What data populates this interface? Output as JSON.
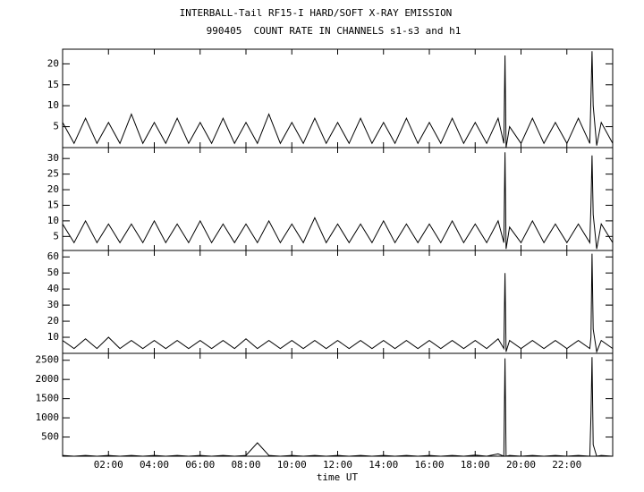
{
  "chart_data": [
    {
      "type": "line",
      "title": "INTERBALL-Tail RF15-I HARD/SOFT X-RAY EMISSION",
      "subtitle": "990405  COUNT RATE IN CHANNELS s1-s3 and h1",
      "x": [
        0,
        0.5,
        1,
        1.5,
        2,
        2.5,
        3,
        3.5,
        4,
        4.5,
        5,
        5.5,
        6,
        6.5,
        7,
        7.5,
        8,
        8.5,
        9,
        9.5,
        10,
        10.5,
        11,
        11.5,
        12,
        12.5,
        13,
        13.5,
        14,
        14.5,
        15,
        15.5,
        16,
        16.5,
        17,
        17.5,
        18,
        18.5,
        19,
        19.25,
        19.3,
        19.35,
        19.5,
        20,
        20.5,
        21,
        21.5,
        22,
        22.5,
        23,
        23.05,
        23.1,
        23.15,
        23.3,
        23.5,
        24
      ],
      "values": [
        6,
        1,
        7,
        1,
        6,
        1,
        8,
        1,
        6,
        1,
        7,
        1,
        6,
        1,
        7,
        1,
        6,
        1,
        8,
        1,
        6,
        1,
        7,
        1,
        6,
        1,
        7,
        1,
        6,
        1,
        7,
        1,
        6,
        1,
        7,
        1,
        6,
        1,
        7,
        1,
        22,
        0,
        5,
        1,
        7,
        1,
        6,
        1,
        7,
        1,
        12,
        23,
        10,
        0.5,
        6,
        1
      ],
      "color": "#000000",
      "ylim": [
        0,
        23.5
      ],
      "yticks": [
        5,
        10,
        15,
        20
      ]
    },
    {
      "type": "line",
      "x": [
        0,
        0.5,
        1,
        1.5,
        2,
        2.5,
        3,
        3.5,
        4,
        4.5,
        5,
        5.5,
        6,
        6.5,
        7,
        7.5,
        8,
        8.5,
        9,
        9.5,
        10,
        10.5,
        11,
        11.5,
        12,
        12.5,
        13,
        13.5,
        14,
        14.5,
        15,
        15.5,
        16,
        16.5,
        17,
        17.5,
        18,
        18.5,
        19,
        19.25,
        19.3,
        19.35,
        19.5,
        20,
        20.5,
        21,
        21.5,
        22,
        22.5,
        23,
        23.05,
        23.1,
        23.15,
        23.3,
        23.5,
        24
      ],
      "values": [
        9,
        3,
        10,
        3,
        9,
        3,
        9,
        3,
        10,
        3,
        9,
        3,
        10,
        3,
        9,
        3,
        9,
        3,
        10,
        3,
        9,
        3,
        11,
        3,
        9,
        3,
        9,
        3,
        10,
        3,
        9,
        3,
        9,
        3,
        10,
        3,
        9,
        3,
        10,
        3,
        32,
        1,
        8,
        3,
        10,
        3,
        9,
        3,
        9,
        3,
        15,
        31,
        12,
        1,
        9,
        3
      ],
      "color": "#000000",
      "ylim": [
        0.5,
        33.5
      ],
      "yticks": [
        5,
        10,
        15,
        20,
        25,
        30
      ]
    },
    {
      "type": "line",
      "x": [
        0,
        0.5,
        1,
        1.5,
        2,
        2.5,
        3,
        3.5,
        4,
        4.5,
        5,
        5.5,
        6,
        6.5,
        7,
        7.5,
        8,
        8.5,
        9,
        9.5,
        10,
        10.5,
        11,
        11.5,
        12,
        12.5,
        13,
        13.5,
        14,
        14.5,
        15,
        15.5,
        16,
        16.5,
        17,
        17.5,
        18,
        18.5,
        19,
        19.25,
        19.3,
        19.35,
        19.5,
        20,
        20.5,
        21,
        21.5,
        22,
        22.5,
        23,
        23.05,
        23.1,
        23.15,
        23.3,
        23.5,
        24
      ],
      "values": [
        8,
        3,
        9,
        3,
        10,
        3,
        8,
        3,
        8,
        3,
        8,
        3,
        8,
        3,
        8,
        3,
        9,
        3,
        8,
        3,
        8,
        3,
        8,
        3,
        8,
        3,
        8,
        3,
        8,
        3,
        8,
        3,
        8,
        3,
        8,
        3,
        8,
        3,
        9,
        3,
        50,
        1,
        8,
        3,
        8,
        3,
        8,
        3,
        8,
        3,
        10,
        62,
        15,
        1,
        8,
        3
      ],
      "color": "#000000",
      "ylim": [
        0,
        64
      ],
      "yticks": [
        10,
        20,
        30,
        40,
        50,
        60
      ]
    },
    {
      "type": "line",
      "xlabel": "time UT",
      "x": [
        0,
        0.5,
        1,
        1.5,
        2,
        2.5,
        3,
        3.5,
        4,
        4.5,
        5,
        5.5,
        6,
        6.5,
        7,
        7.5,
        8,
        8.5,
        9,
        9.5,
        10,
        10.5,
        11,
        11.5,
        12,
        12.5,
        13,
        13.5,
        14,
        14.5,
        15,
        15.5,
        16,
        16.5,
        17,
        17.5,
        18,
        18.5,
        19,
        19.25,
        19.3,
        19.35,
        19.5,
        20,
        20.5,
        21,
        21.5,
        22,
        22.5,
        23,
        23.05,
        23.1,
        23.15,
        23.3,
        23.5,
        24
      ],
      "values": [
        20,
        0,
        20,
        0,
        20,
        0,
        20,
        0,
        20,
        0,
        20,
        0,
        20,
        0,
        20,
        0,
        20,
        350,
        20,
        0,
        20,
        0,
        20,
        0,
        20,
        0,
        20,
        0,
        20,
        0,
        20,
        0,
        20,
        0,
        20,
        0,
        30,
        0,
        60,
        0,
        2550,
        0,
        20,
        0,
        20,
        0,
        20,
        0,
        20,
        0,
        1050,
        2580,
        300,
        0,
        20,
        0
      ],
      "color": "#000000",
      "ylim": [
        0,
        2680
      ],
      "yticks": [
        500,
        1000,
        1500,
        2000,
        2500
      ],
      "xlim": [
        0,
        24
      ],
      "xticks": [
        {
          "value": 2,
          "label": "02:00"
        },
        {
          "value": 4,
          "label": "04:00"
        },
        {
          "value": 6,
          "label": "06:00"
        },
        {
          "value": 8,
          "label": "08:00"
        },
        {
          "value": 10,
          "label": "10:00"
        },
        {
          "value": 12,
          "label": "12:00"
        },
        {
          "value": 14,
          "label": "14:00"
        },
        {
          "value": 16,
          "label": "16:00"
        },
        {
          "value": 18,
          "label": "18:00"
        },
        {
          "value": 20,
          "label": "20:00"
        },
        {
          "value": 22,
          "label": "22:00"
        }
      ]
    }
  ]
}
